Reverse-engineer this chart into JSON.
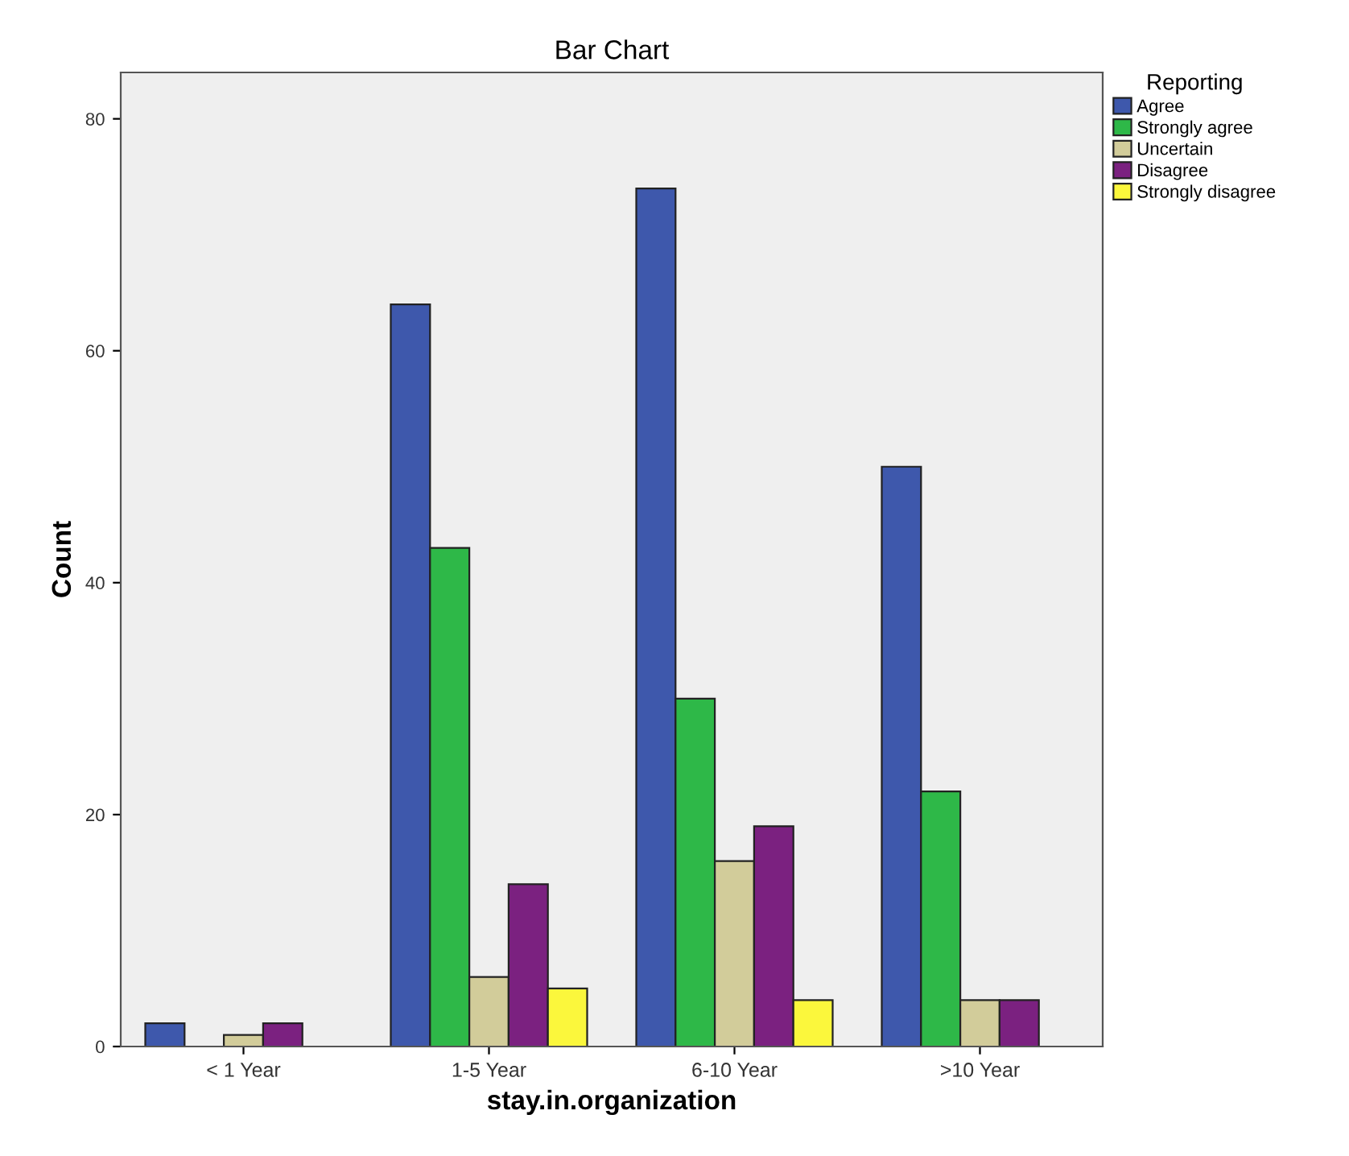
{
  "chart_data": {
    "type": "bar",
    "title": "Bar Chart",
    "xlabel": "stay.in.organization",
    "ylabel": "Count",
    "legend_title": "Reporting",
    "categories": [
      "< 1 Year",
      "1-5 Year",
      "6-10 Year",
      ">10 Year"
    ],
    "series": [
      {
        "name": "Agree",
        "color": "#3e58ac",
        "values": [
          2,
          64,
          74,
          50
        ]
      },
      {
        "name": "Strongly agree",
        "color": "#2eb848",
        "values": [
          null,
          43,
          30,
          22
        ]
      },
      {
        "name": "Uncertain",
        "color": "#d2cc9a",
        "values": [
          1,
          6,
          16,
          4
        ]
      },
      {
        "name": "Disagree",
        "color": "#7b2180",
        "values": [
          2,
          14,
          19,
          4
        ]
      },
      {
        "name": "Strongly disagree",
        "color": "#fbf73c",
        "values": [
          null,
          5,
          4,
          null
        ]
      }
    ],
    "ylim": [
      0,
      84
    ],
    "yticks": [
      0,
      20,
      40,
      60,
      80
    ],
    "grid": false,
    "legend": "top right"
  }
}
